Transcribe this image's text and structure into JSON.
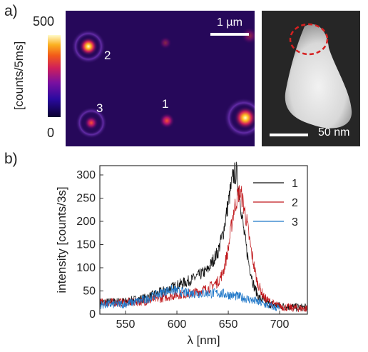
{
  "panels": {
    "a": "a)",
    "b": "b)"
  },
  "colorbar": {
    "title": "[counts/5ms]",
    "max": "500",
    "min": "0"
  },
  "map": {
    "scalebar": "1 µm",
    "particles": [
      "1",
      "2",
      "3"
    ],
    "colors": {
      "background": "#26085a",
      "spot": "#f0a020"
    }
  },
  "sem": {
    "scalebar": "50 nm",
    "marker_color": "#d62020"
  },
  "chart_data": {
    "type": "line",
    "xlabel": "λ [nm]",
    "ylabel": "intensity [counts/3s]",
    "xlim": [
      525,
      727
    ],
    "ylim": [
      0,
      320
    ],
    "xticks": [
      550,
      600,
      650,
      700
    ],
    "yticks": [
      0,
      50,
      100,
      150,
      200,
      250,
      300
    ],
    "legend_position": "top-right",
    "series": [
      {
        "name": "1",
        "color": "#111111",
        "x": [
          525,
          550,
          570,
          585,
          600,
          615,
          630,
          640,
          645,
          650,
          655,
          658,
          661,
          665,
          670,
          675,
          680,
          690,
          700,
          715,
          727
        ],
        "y": [
          25,
          27,
          35,
          48,
          62,
          75,
          95,
          135,
          175,
          240,
          300,
          305,
          260,
          180,
          110,
          60,
          35,
          22,
          18,
          15,
          14
        ]
      },
      {
        "name": "2",
        "color": "#c0181c",
        "x": [
          525,
          550,
          570,
          585,
          600,
          615,
          630,
          640,
          645,
          650,
          655,
          660,
          663,
          668,
          672,
          678,
          685,
          695,
          705,
          715,
          727
        ],
        "y": [
          25,
          25,
          28,
          35,
          42,
          45,
          55,
          70,
          90,
          140,
          220,
          262,
          255,
          200,
          140,
          70,
          35,
          20,
          15,
          13,
          12
        ]
      },
      {
        "name": "3",
        "color": "#1f77c8",
        "x": [
          525,
          550,
          570,
          580,
          590,
          595,
          600,
          610,
          620,
          630,
          640,
          650,
          660,
          670,
          680,
          690,
          700
        ],
        "y": [
          20,
          22,
          32,
          42,
          50,
          52,
          50,
          45,
          45,
          45,
          45,
          42,
          38,
          32,
          25,
          18,
          12
        ]
      }
    ]
  }
}
